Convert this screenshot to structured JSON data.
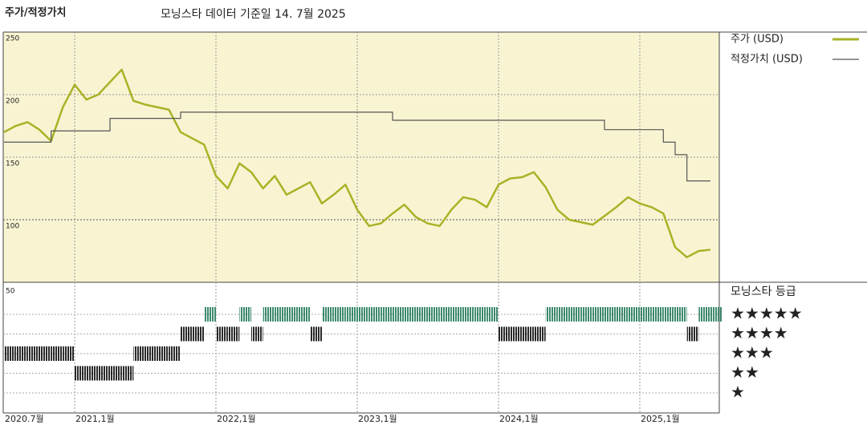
{
  "chart_data": [
    {
      "type": "line",
      "title": "주가/적정가치",
      "subtitle": "모닝스타 데이터 기준일 14. 7월 2025",
      "x": [
        "2020-07",
        "2020-08",
        "2020-09",
        "2020-10",
        "2020-11",
        "2020-12",
        "2021-01",
        "2021-02",
        "2021-03",
        "2021-04",
        "2021-05",
        "2021-06",
        "2021-07",
        "2021-08",
        "2021-09",
        "2021-10",
        "2021-11",
        "2021-12",
        "2022-01",
        "2022-02",
        "2022-03",
        "2022-04",
        "2022-05",
        "2022-06",
        "2022-07",
        "2022-08",
        "2022-09",
        "2022-10",
        "2022-11",
        "2022-12",
        "2023-01",
        "2023-02",
        "2023-03",
        "2023-04",
        "2023-05",
        "2023-06",
        "2023-07",
        "2023-08",
        "2023-09",
        "2023-10",
        "2023-11",
        "2023-12",
        "2024-01",
        "2024-02",
        "2024-03",
        "2024-04",
        "2024-05",
        "2024-06",
        "2024-07",
        "2024-08",
        "2024-09",
        "2024-10",
        "2024-11",
        "2024-12",
        "2025-01",
        "2025-02",
        "2025-03",
        "2025-04",
        "2025-05",
        "2025-06",
        "2025-07"
      ],
      "series": [
        {
          "name": "주가 (USD)",
          "color": "#a9b226",
          "values": [
            170,
            175,
            178,
            172,
            163,
            190,
            208,
            196,
            200,
            210,
            220,
            195,
            192,
            190,
            188,
            170,
            165,
            160,
            135,
            125,
            145,
            138,
            125,
            135,
            120,
            125,
            130,
            113,
            120,
            128,
            108,
            95,
            97,
            105,
            112,
            102,
            97,
            95,
            108,
            118,
            116,
            110,
            128,
            133,
            134,
            138,
            126,
            108,
            100,
            98,
            96,
            103,
            110,
            118,
            113,
            110,
            105,
            78,
            70,
            75,
            76
          ]
        },
        {
          "name": "적정가치 (USD)",
          "color": "#555555",
          "step": true,
          "values": [
            162,
            162,
            162,
            162,
            171,
            171,
            171,
            171,
            171,
            181,
            181,
            181,
            181,
            181,
            181,
            186,
            186,
            186,
            186,
            186,
            186,
            186,
            186,
            186,
            186,
            186,
            186,
            186,
            186,
            186,
            186,
            186,
            186,
            179.5,
            179.5,
            179.5,
            179.5,
            179.5,
            179.5,
            179.5,
            179.5,
            179.5,
            179.5,
            179.5,
            179.5,
            179.5,
            179.5,
            179.5,
            179.5,
            179.5,
            179.5,
            172,
            172,
            172,
            172,
            172,
            162,
            152,
            131,
            131,
            131
          ]
        }
      ],
      "ylim": [
        50,
        250
      ],
      "yticks": [
        100,
        150,
        200,
        250
      ],
      "xlim": [
        "2020-07",
        "2025-07"
      ],
      "xticks": [
        {
          "value": "2020-07",
          "label": "2020.7월"
        },
        {
          "value": "2021-01",
          "label": "2021,1월"
        },
        {
          "value": "2022-01",
          "label": "2022,1월"
        },
        {
          "value": "2023-01",
          "label": "2023,1월"
        },
        {
          "value": "2024-01",
          "label": "2024,1월"
        },
        {
          "value": "2025-01",
          "label": "2025,1월"
        }
      ],
      "background": "#f8f4d2",
      "grid": true
    },
    {
      "type": "rating",
      "title": "모닝스타 등급",
      "panel_label": "50",
      "values": [
        3,
        3,
        3,
        3,
        3,
        3,
        2,
        2,
        2,
        2,
        2,
        3,
        3,
        3,
        3,
        4,
        4,
        5,
        4,
        4,
        5,
        4,
        5,
        5,
        5,
        5,
        4,
        5,
        5,
        5,
        5,
        5,
        5,
        5,
        5,
        5,
        5,
        5,
        5,
        5,
        5,
        5,
        4,
        4,
        4,
        4,
        5,
        5,
        5,
        5,
        5,
        5,
        5,
        5,
        5,
        5,
        5,
        5,
        4,
        5,
        5
      ],
      "rating_labels": [
        "★★★★★",
        "★★★★",
        "★★★",
        "★★",
        "★"
      ],
      "top_color": "#3d8a6c",
      "color": "#2a2a2a"
    }
  ]
}
